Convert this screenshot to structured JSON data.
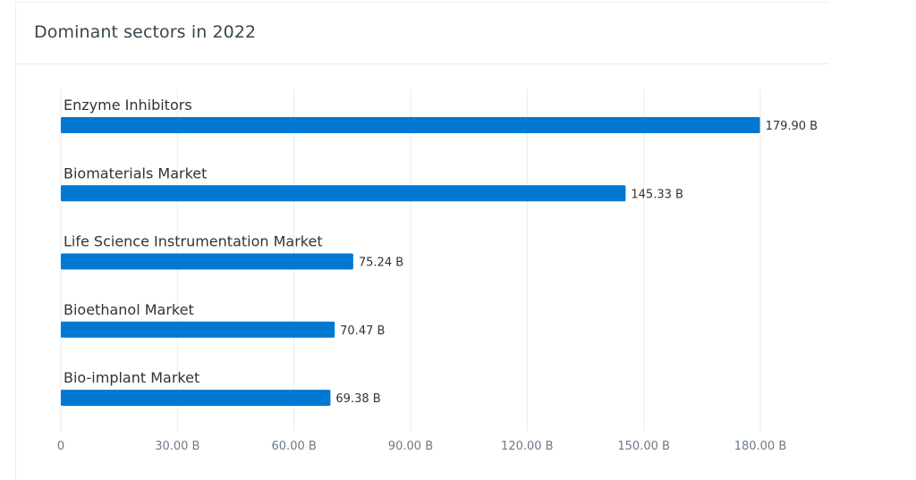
{
  "card": {
    "title": "Dominant sectors in 2022"
  },
  "colors": {
    "bar": "#0078d4",
    "grid": "#e8eaed",
    "title": "#37474f"
  },
  "chart_data": {
    "type": "bar",
    "orientation": "horizontal",
    "categories": [
      "Enzyme Inhibitors",
      "Biomaterials Market",
      "Life Science Instrumentation Market",
      "Bioethanol Market",
      "Bio-implant Market"
    ],
    "values": [
      179.9,
      145.33,
      75.24,
      70.47,
      69.38
    ],
    "value_labels": [
      "179.90 B",
      "145.33 B",
      "75.24 B",
      "70.47 B",
      "69.38 B"
    ],
    "xlim": [
      0,
      180
    ],
    "ticks": [
      0,
      30,
      60,
      90,
      120,
      150,
      180
    ],
    "tick_labels": [
      "0",
      "30.00 B",
      "60.00 B",
      "90.00 B",
      "120.00 B",
      "150.00 B",
      "180.00 B"
    ],
    "grid": true,
    "legend": "none"
  }
}
